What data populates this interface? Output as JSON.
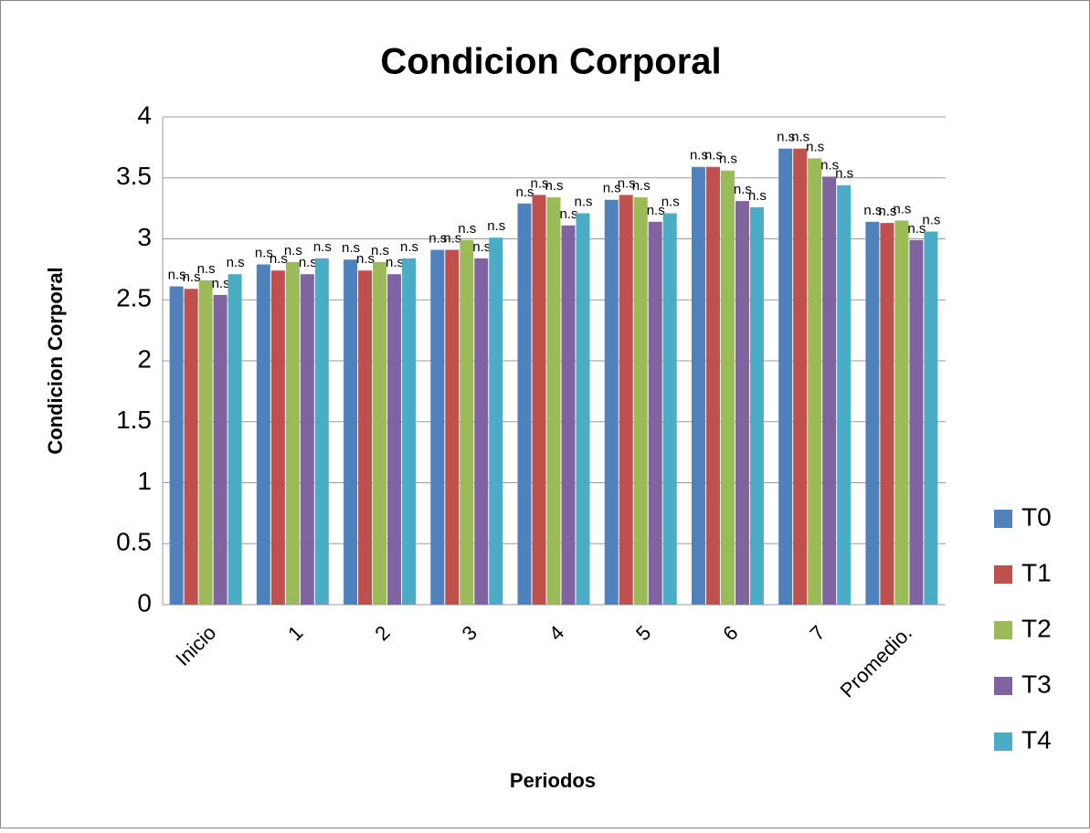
{
  "chart_data": {
    "type": "bar",
    "title": "Condicion Corporal",
    "x_label": "Periodos",
    "y_label": "Condicion Corporal",
    "categories": [
      "Inicio",
      "1",
      "2",
      "3",
      "4",
      "5",
      "6",
      "7",
      "Promedio."
    ],
    "series": [
      {
        "name": "T0",
        "color": "#4f81bd",
        "values": [
          2.61,
          2.79,
          2.83,
          2.91,
          3.29,
          3.32,
          3.59,
          3.74,
          3.14
        ],
        "labels": [
          "n.s",
          "n.s",
          "n.s",
          "n.s",
          "n.s",
          "n.s",
          "n.s",
          "n.s",
          "n.s"
        ]
      },
      {
        "name": "T1",
        "color": "#c0504d",
        "values": [
          2.59,
          2.74,
          2.74,
          2.91,
          3.36,
          3.36,
          3.59,
          3.74,
          3.13
        ],
        "labels": [
          "n.s",
          "n.s",
          "n.s",
          "n.s",
          "n.s",
          "n.s",
          "n.s",
          "n.s",
          "n.s"
        ]
      },
      {
        "name": "T2",
        "color": "#9bbb59",
        "values": [
          2.66,
          2.81,
          2.81,
          2.99,
          3.34,
          3.34,
          3.56,
          3.66,
          3.15
        ],
        "labels": [
          "n.s",
          "n.s",
          "n.s",
          "n.s",
          "n.s",
          "n.s",
          "n.s",
          "n.s",
          "n.s"
        ]
      },
      {
        "name": "T3",
        "color": "#8064a2",
        "values": [
          2.54,
          2.71,
          2.71,
          2.84,
          3.11,
          3.14,
          3.31,
          3.51,
          2.99
        ],
        "labels": [
          "n.s",
          "n.s",
          "n.s",
          "n.s",
          "n.s",
          "n.s",
          "n.s",
          "n.s",
          "n.s"
        ]
      },
      {
        "name": "T4",
        "color": "#4bacc6",
        "values": [
          2.71,
          2.84,
          2.84,
          3.01,
          3.21,
          3.21,
          3.26,
          3.44,
          3.06
        ],
        "labels": [
          "n.s",
          "n.s",
          "n.s",
          "n.s",
          "n.s",
          "n.s",
          "n.s",
          "n.s",
          "n.s"
        ]
      }
    ],
    "ylim": [
      0,
      4
    ],
    "yticks": [
      0,
      0.5,
      1,
      1.5,
      2,
      2.5,
      3,
      3.5,
      4
    ],
    "grid": true,
    "legend": "right"
  }
}
